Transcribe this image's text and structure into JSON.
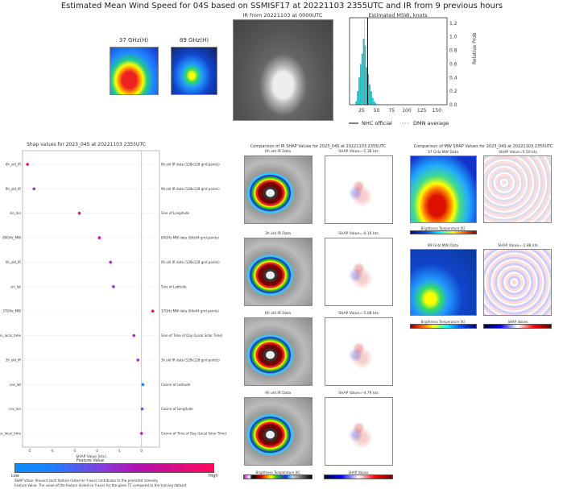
{
  "title": "Estimated Mean Wind Speed for 04S based on SSMISF17 at 20221103 2355UTC and IR from 9 previous hours",
  "top": {
    "mw_37_label": "37 GHz(H)",
    "mw_89_label": "89 GHz(H)",
    "ir_title": "IR from 20221103 at 0000UTC"
  },
  "chart_data": [
    {
      "type": "bar",
      "title": "Estimated MSW, knots",
      "ylabel": "Relative Prob",
      "xlim": [
        5,
        167
      ],
      "ylim": [
        0,
        1.28
      ],
      "xticks": [
        "25",
        "50",
        "75",
        "100",
        "125",
        "150"
      ],
      "yticks": [
        "0.0",
        "0.2",
        "0.4",
        "0.6",
        "0.8",
        "1.0",
        "1.2"
      ],
      "bin_centers": [
        16,
        18.5,
        21,
        23.5,
        26,
        28.5,
        31,
        33.5,
        36,
        38.5,
        41,
        43.5,
        46,
        48.5
      ],
      "values": [
        0.05,
        0.2,
        0.4,
        0.6,
        0.75,
        0.97,
        0.87,
        0.55,
        0.45,
        0.3,
        0.2,
        0.1,
        0.05,
        0.02
      ],
      "nhc_official": 35,
      "dmn_average": 30,
      "legend": [
        "NHC official",
        "DMN average"
      ],
      "bar_color": "#19c5c9"
    },
    {
      "type": "scatter",
      "title": "Shap values for 2023_04S at 20221103 2355UTC",
      "xlabel": "SHAP Value [kts]",
      "xlim": [
        -5.3,
        0.8
      ],
      "xticks": [
        "-5",
        "-4",
        "-3",
        "-2",
        "-1",
        "0"
      ],
      "features": [
        {
          "name": "6h_old_IR",
          "desc": "6h old IR data (128x128 grid points)",
          "shap": -5.08,
          "color": "#ff0a5a"
        },
        {
          "name": "9h_old_IR",
          "desc": "9h old IR data (128x128 grid points)",
          "shap": -4.79,
          "color": "#9b2fd8"
        },
        {
          "name": "sin_lon",
          "desc": "Sine of Longitude",
          "shap": -2.77,
          "color": "#ff0a5a"
        },
        {
          "name": "89GHz_MW",
          "desc": "89GHz MW data (64x64 grid points)",
          "shap": -1.88,
          "color": "#d40fb0"
        },
        {
          "name": "0h_old_IR",
          "desc": "0h old IR data (128x128 grid points)",
          "shap": -1.38,
          "color": "#a52bd0"
        },
        {
          "name": "sin_lat",
          "desc": "Sine of Latitude",
          "shap": -1.25,
          "color": "#8f35e0"
        },
        {
          "name": "37GHz_MW",
          "desc": "37GHz MW data (64x64 grid points)",
          "shap": 0.5,
          "color": "#ff0a5a"
        },
        {
          "name": "sin_local_time",
          "desc": "Sine of Time of Day (Local Solar Time)",
          "shap": -0.34,
          "color": "#b51fc6"
        },
        {
          "name": "3h_old_IR",
          "desc": "3h old IR data (128x128 grid points)",
          "shap": -0.16,
          "color": "#a52bd0"
        },
        {
          "name": "cos_lat",
          "desc": "Cosine of Latitude",
          "shap": 0.06,
          "color": "#1a80ff"
        },
        {
          "name": "cos_lon",
          "desc": "Cosine of Longitude",
          "shap": 0.03,
          "color": "#7a44ea"
        },
        {
          "name": "cos_local_time",
          "desc": "Cosine of Time of Day (Local Solar Time)",
          "shap": 0.0,
          "color": "#b51fc6"
        }
      ],
      "colorbar_title": "Feature Value",
      "low": "Low",
      "high": "High",
      "note1": "SHAP Value: Amount each feature (listed on Y-axis) contributes to the predicted intensity",
      "note2": "Feature Value: The value of the feature (listed on Y-axis) for the given TC compared to the training dataset"
    }
  ],
  "ir_compare": {
    "title": "Comparison of IR SHAP Values for 2023_04S at 20221103 2355UTC",
    "rows": [
      {
        "data_title": "0h old IR Data",
        "shap_title": "SHAP Value=-1.38 kts"
      },
      {
        "data_title": "3h old IR Data",
        "shap_title": "SHAP Value=-0.16 kts"
      },
      {
        "data_title": "6h old IR Data",
        "shap_title": "SHAP Value=-5.08 kts"
      },
      {
        "data_title": "9h old IR Data",
        "shap_title": "SHAP Value=-4.79 kts"
      }
    ],
    "bt_label": "Brightness Temperature [K]",
    "shap_label": "SHAP Values"
  },
  "mw_compare": {
    "title": "Comparison of MW SHAP Values for 2023_04S at 20221103 2355UTC",
    "rows": [
      {
        "data_title": "37 GHz MW Data",
        "shap_title": "SHAP Value=0.50 kts"
      },
      {
        "data_title": "89 GHz MW Data",
        "shap_title": "SHAP Value=-1.88 kts"
      }
    ],
    "bt_label": "Brightness Temperature [K]",
    "shap_label": "SHAP Values"
  }
}
